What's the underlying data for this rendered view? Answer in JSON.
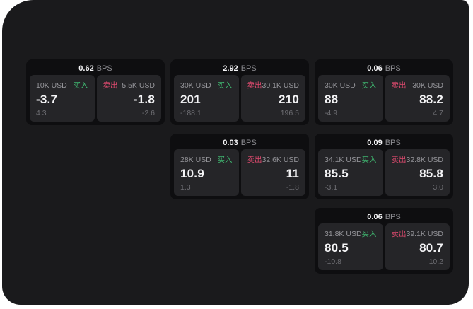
{
  "theme": {
    "page_bg": "#ffffff",
    "window_bg": "#1a1a1c",
    "card_bg": "#0e0e10",
    "panel_bg": "#252528",
    "buy_color": "#3fb56f",
    "sell_color": "#dd4a6e",
    "text_primary": "#f4f4f6",
    "text_muted": "#95959a",
    "text_dim": "#6e6e73"
  },
  "cards": [
    {
      "bps": "0.62",
      "unit": "BPS",
      "buy": {
        "amount": "10K USD",
        "label": "买入",
        "value": "-3.7",
        "sub": "4.3"
      },
      "sell": {
        "label": "卖出",
        "amount": "5.5K USD",
        "value": "-1.8",
        "sub": "-2.6"
      }
    },
    {
      "bps": "2.92",
      "unit": "BPS",
      "buy": {
        "amount": "30K USD",
        "label": "买入",
        "value": "201",
        "sub": "-188.1"
      },
      "sell": {
        "label": "卖出",
        "amount": "30.1K USD",
        "value": "210",
        "sub": "196.5"
      }
    },
    {
      "bps": "0.06",
      "unit": "BPS",
      "buy": {
        "amount": "30K USD",
        "label": "买入",
        "value": "88",
        "sub": "-4.9"
      },
      "sell": {
        "label": "卖出",
        "amount": "30K USD",
        "value": "88.2",
        "sub": "4.7"
      }
    },
    {
      "bps": "0.03",
      "unit": "BPS",
      "buy": {
        "amount": "28K USD",
        "label": "买入",
        "value": "10.9",
        "sub": "1.3"
      },
      "sell": {
        "label": "卖出",
        "amount": "32.6K USD",
        "value": "11",
        "sub": "-1.8"
      }
    },
    {
      "bps": "0.09",
      "unit": "BPS",
      "buy": {
        "amount": "34.1K USD",
        "label": "买入",
        "value": "85.5",
        "sub": "-3.1"
      },
      "sell": {
        "label": "卖出",
        "amount": "32.8K USD",
        "value": "85.8",
        "sub": "3.0"
      }
    },
    {
      "bps": "0.06",
      "unit": "BPS",
      "buy": {
        "amount": "31.8K USD",
        "label": "买入",
        "value": "80.5",
        "sub": "-10.8"
      },
      "sell": {
        "label": "卖出",
        "amount": "39.1K USD",
        "value": "80.7",
        "sub": "10.2"
      }
    }
  ]
}
